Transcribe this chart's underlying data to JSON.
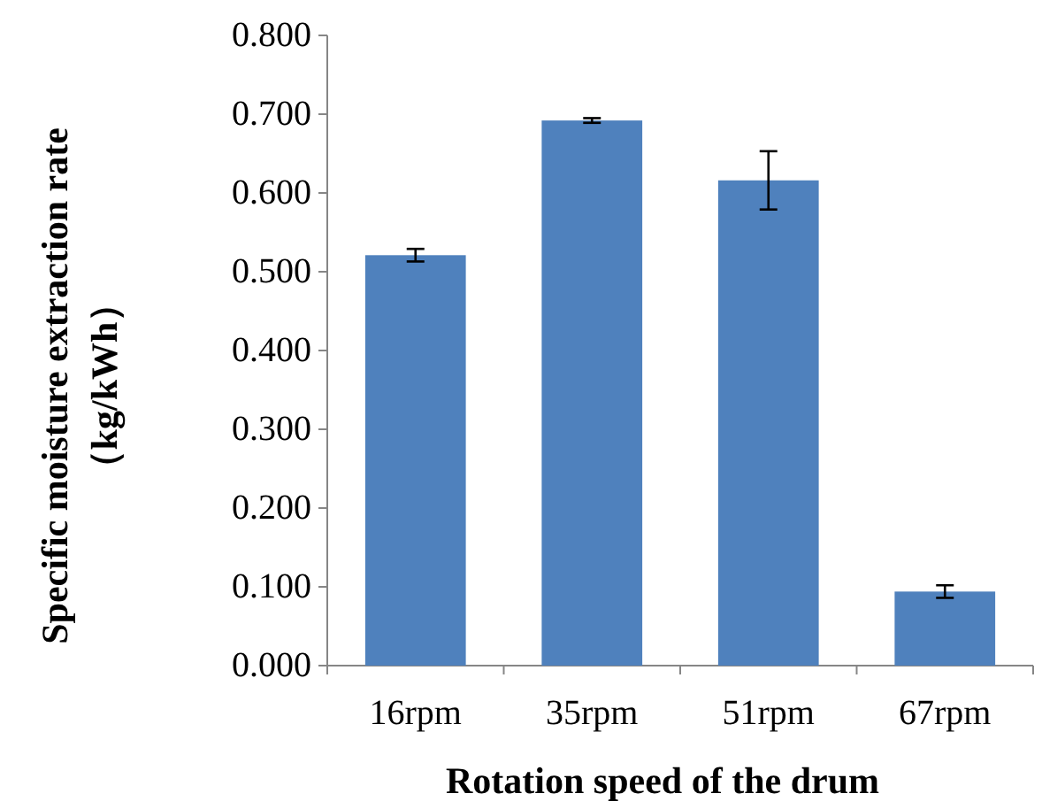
{
  "chart_data": {
    "type": "bar",
    "xlabel": "Rotation speed of the drum",
    "ylabel": "Specific moisture extraction rate\n（kg/kWh）",
    "categories": [
      "16rpm",
      "35rpm",
      "51rpm",
      "67rpm"
    ],
    "values": [
      0.521,
      0.692,
      0.616,
      0.094
    ],
    "errors": [
      0.008,
      0.003,
      0.037,
      0.008
    ],
    "color": "#4f81bd",
    "ylim": [
      0,
      0.8
    ],
    "yticks": [
      {
        "value": 0,
        "label": "0.000"
      },
      {
        "value": 0.1,
        "label": "0.100"
      },
      {
        "value": 0.2,
        "label": "0.200"
      },
      {
        "value": 0.3,
        "label": "0.300"
      },
      {
        "value": 0.4,
        "label": "0.400"
      },
      {
        "value": 0.5,
        "label": "0.500"
      },
      {
        "value": 0.6,
        "label": "0.600"
      },
      {
        "value": 0.7,
        "label": "0.700"
      },
      {
        "value": 0.8,
        "label": "0.800"
      }
    ],
    "grid": false
  }
}
